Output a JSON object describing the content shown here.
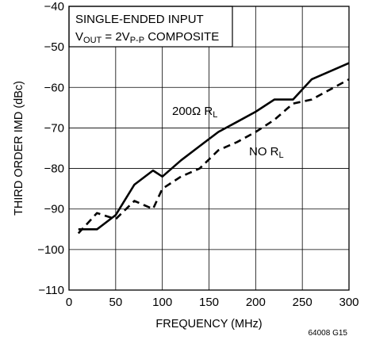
{
  "chart_data": {
    "type": "line",
    "xlabel": "FREQUENCY (MHz)",
    "ylabel": "THIRD ORDER IMD (dBc)",
    "xlim": [
      0,
      300
    ],
    "ylim": [
      -110,
      -40
    ],
    "x_ticks": [
      "0",
      "50",
      "100",
      "150",
      "200",
      "250",
      "300"
    ],
    "y_ticks": [
      "−40",
      "−50",
      "−60",
      "−70",
      "−80",
      "−90",
      "−100",
      "−110"
    ],
    "grid": true,
    "annotation_box": {
      "line1": "SINGLE-ENDED INPUT",
      "line2_prefix": "V",
      "line2_sub1": "OUT",
      "line2_mid": " = 2V",
      "line2_sub2": "P-P",
      "line2_suffix": " COMPOSITE"
    },
    "series": [
      {
        "label_main": "200Ω R",
        "label_sub": "L",
        "style": "solid",
        "x": [
          10,
          30,
          50,
          70,
          90,
          100,
          120,
          140,
          160,
          180,
          200,
          220,
          240,
          260,
          280,
          300
        ],
        "y": [
          -95,
          -95,
          -91.5,
          -84,
          -80.5,
          -82,
          -78,
          -74.5,
          -71,
          -68.5,
          -66,
          -63,
          -63,
          -58,
          -56,
          -54
        ]
      },
      {
        "label_main": "NO R",
        "label_sub": "L",
        "style": "dashed",
        "x": [
          10,
          30,
          50,
          70,
          90,
          100,
          120,
          140,
          160,
          180,
          200,
          220,
          240,
          260,
          280,
          300
        ],
        "y": [
          -96,
          -91,
          -92.5,
          -88,
          -90,
          -85,
          -82,
          -80,
          -75.5,
          -73.5,
          -71,
          -68,
          -64,
          -63,
          -60.5,
          -58
        ]
      }
    ],
    "figure_id": "64008 G15"
  }
}
